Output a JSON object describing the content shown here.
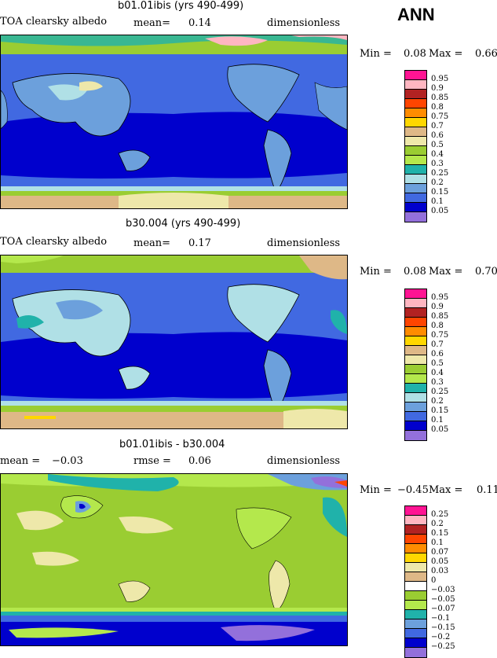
{
  "season": "ANN",
  "panels": [
    {
      "title": "b01.01ibis (yrs 490-499)",
      "left_label": "TOA clearsky albedo",
      "mid_label": "mean=",
      "mid_value": "0.14",
      "right_label": "dimensionless",
      "min_label": "Min =",
      "min_value": "0.08",
      "max_label": "Max =",
      "max_value": "0.66",
      "levels": [
        "0.95",
        "0.9",
        "0.85",
        "0.8",
        "0.75",
        "0.7",
        "0.6",
        "0.5",
        "0.4",
        "0.3",
        "0.25",
        "0.2",
        "0.15",
        "0.1",
        "0.05"
      ],
      "colors": [
        "#ff1493",
        "#ffb6c1",
        "#b22222",
        "#ff4500",
        "#ff8c00",
        "#ffd700",
        "#deb887",
        "#eee8aa",
        "#9acd32",
        "#b4e84c",
        "#20b2aa",
        "#b0e0e6",
        "#6ca0dc",
        "#4169e1",
        "#0000cd",
        "#9370db"
      ]
    },
    {
      "title": "b30.004 (yrs 490-499)",
      "left_label": "TOA clearsky albedo",
      "mid_label": "mean=",
      "mid_value": "0.17",
      "right_label": "dimensionless",
      "min_label": "Min =",
      "min_value": "0.08",
      "max_label": "Max =",
      "max_value": "0.70",
      "levels": [
        "0.95",
        "0.9",
        "0.85",
        "0.8",
        "0.75",
        "0.7",
        "0.6",
        "0.5",
        "0.4",
        "0.3",
        "0.25",
        "0.2",
        "0.15",
        "0.1",
        "0.05"
      ],
      "colors": [
        "#ff1493",
        "#ffb6c1",
        "#b22222",
        "#ff4500",
        "#ff8c00",
        "#ffd700",
        "#deb887",
        "#eee8aa",
        "#9acd32",
        "#b4e84c",
        "#20b2aa",
        "#b0e0e6",
        "#6ca0dc",
        "#4169e1",
        "#0000cd",
        "#9370db"
      ]
    },
    {
      "title": "b01.01ibis - b30.004",
      "left_label": "mean =",
      "left_value": "−0.03",
      "mid_label": "rmse =",
      "mid_value": "0.06",
      "right_label": "dimensionless",
      "min_label": "Min =",
      "min_value": "−0.45",
      "max_label": "Max =",
      "max_value": "0.11",
      "levels": [
        "0.25",
        "0.2",
        "0.15",
        "0.1",
        "0.07",
        "0.05",
        "0.03",
        "0",
        "−0.03",
        "−0.05",
        "−0.07",
        "−0.1",
        "−0.15",
        "−0.2",
        "−0.25"
      ],
      "colors": [
        "#ff1493",
        "#ffb6c1",
        "#b22222",
        "#ff4500",
        "#ff8c00",
        "#ffd700",
        "#eee8aa",
        "#deb887",
        "#ffffff",
        "#9acd32",
        "#b4e84c",
        "#20b2aa",
        "#6ca0dc",
        "#4169e1",
        "#0000cd",
        "#9370db"
      ]
    }
  ],
  "chart_data": [
    {
      "type": "heatmap",
      "title": "b01.01ibis (yrs 490-499)",
      "variable": "TOA clearsky albedo",
      "units": "dimensionless",
      "mean": 0.14,
      "min": 0.08,
      "max": 0.66,
      "contour_levels": [
        0.05,
        0.1,
        0.15,
        0.2,
        0.25,
        0.3,
        0.4,
        0.5,
        0.6,
        0.7,
        0.75,
        0.8,
        0.85,
        0.9,
        0.95
      ]
    },
    {
      "type": "heatmap",
      "title": "b30.004 (yrs 490-499)",
      "variable": "TOA clearsky albedo",
      "units": "dimensionless",
      "mean": 0.17,
      "min": 0.08,
      "max": 0.7,
      "contour_levels": [
        0.05,
        0.1,
        0.15,
        0.2,
        0.25,
        0.3,
        0.4,
        0.5,
        0.6,
        0.7,
        0.75,
        0.8,
        0.85,
        0.9,
        0.95
      ]
    },
    {
      "type": "heatmap",
      "title": "b01.01ibis - b30.004",
      "units": "dimensionless",
      "mean": -0.03,
      "rmse": 0.06,
      "min": -0.45,
      "max": 0.11,
      "contour_levels": [
        -0.25,
        -0.2,
        -0.15,
        -0.1,
        -0.07,
        -0.05,
        -0.03,
        0,
        0.03,
        0.05,
        0.07,
        0.1,
        0.15,
        0.2,
        0.25
      ]
    }
  ]
}
